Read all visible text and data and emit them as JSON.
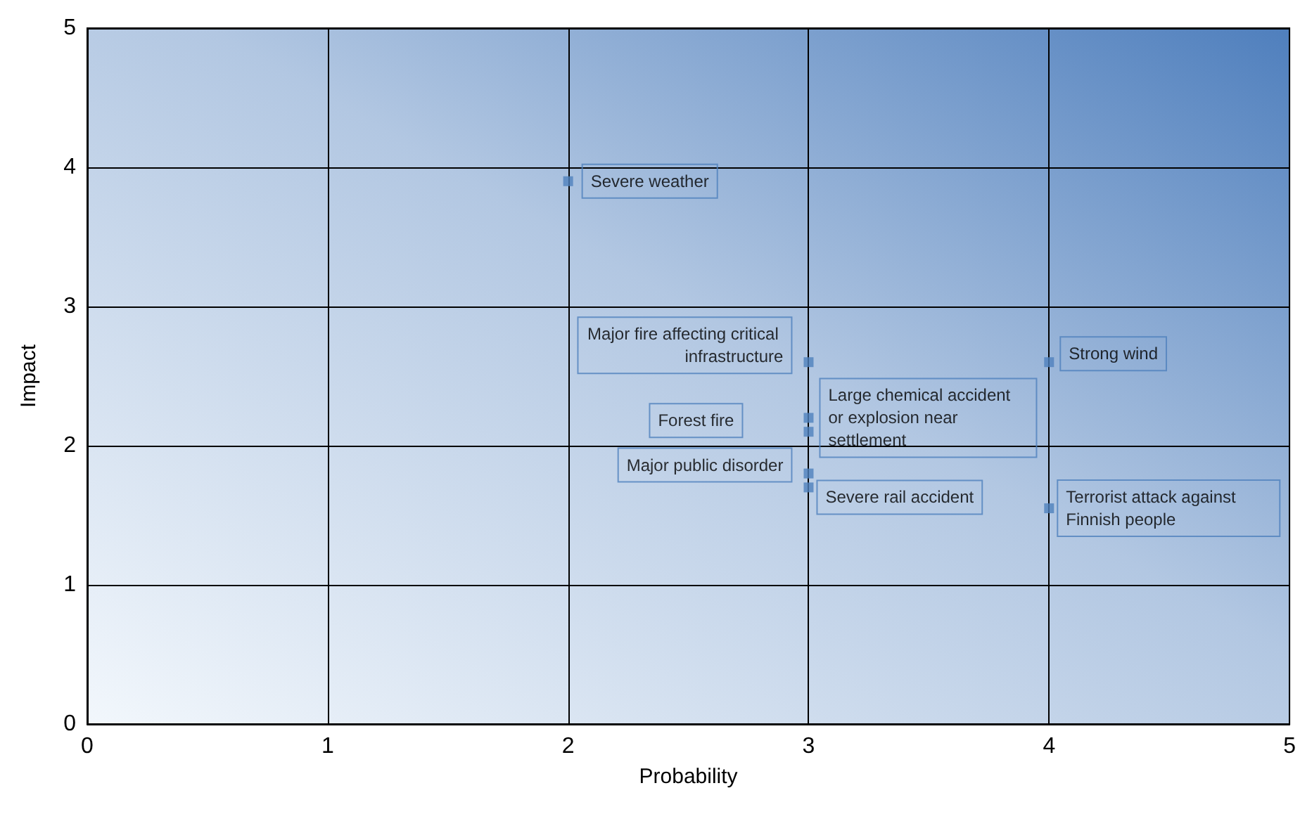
{
  "chart_data": {
    "type": "scatter",
    "xlabel": "Probability",
    "ylabel": "Impact",
    "x": [
      2,
      3,
      3,
      3,
      3,
      3,
      4,
      4
    ],
    "series": [
      {
        "color": "#4f81bd",
        "values": [
          3.9,
          2.6,
          2.2,
          2.1,
          1.8,
          1.7,
          2.6,
          1.55
        ]
      }
    ],
    "value_labels": [
      "Severe weather",
      "Major fire affecting critical infrastructure",
      "Large chemical accident or explosion near settlement",
      "Forest fire",
      "Major public disorder",
      "Severe rail accident",
      "Strong wind",
      "Terrorist attack against Finnish people"
    ],
    "xlim": [
      0,
      5
    ],
    "xticks": [
      0,
      1,
      2,
      3,
      4,
      5
    ],
    "ylim": [
      0,
      5
    ],
    "yticks": [
      0,
      1,
      2,
      3,
      4,
      5
    ],
    "grid": true,
    "marker": "square"
  }
}
